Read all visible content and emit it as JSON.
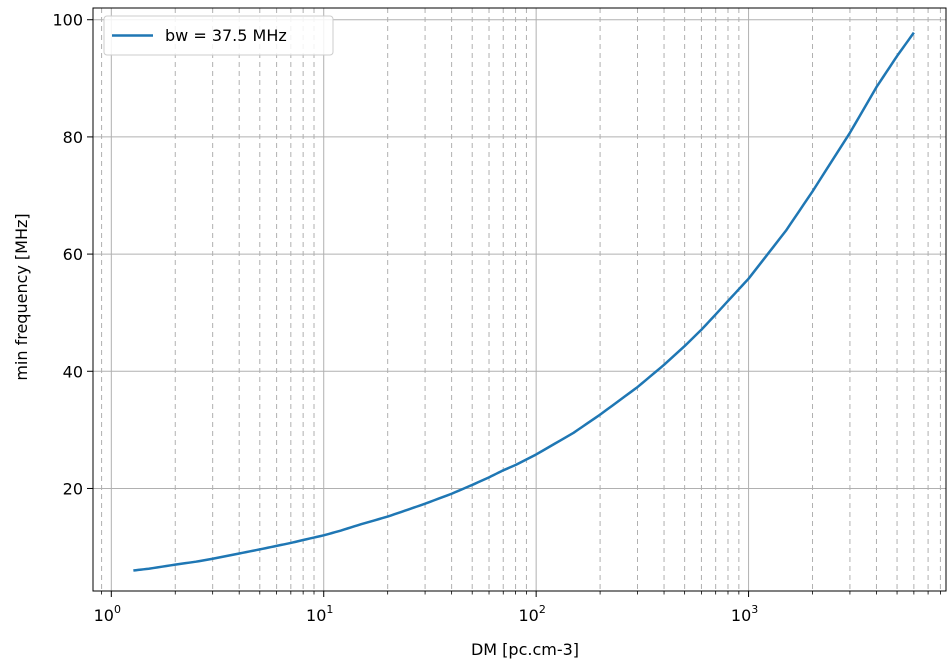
{
  "chart_data": {
    "type": "line",
    "title": "",
    "xlabel": "DM [pc.cm-3]",
    "ylabel": "min frequency [MHz]",
    "xscale": "log",
    "xlim": [
      0.82,
      8500
    ],
    "ylim": [
      2.5,
      102
    ],
    "x_major_ticks": [
      {
        "value": 1,
        "base": "10",
        "exp": "0"
      },
      {
        "value": 10,
        "base": "10",
        "exp": "1"
      },
      {
        "value": 100,
        "base": "10",
        "exp": "2"
      },
      {
        "value": 1000,
        "base": "10",
        "exp": "3"
      }
    ],
    "y_ticks": [
      20,
      40,
      60,
      80,
      100
    ],
    "grid": {
      "major": "solid",
      "minor_x": "dashed"
    },
    "legend_position": "top-left",
    "series": [
      {
        "name": "bw = 37.5 MHz",
        "color": "#1f77b4",
        "x": [
          1.27,
          1.5,
          2,
          2.5,
          3,
          4,
          5,
          6,
          7,
          8,
          10,
          12,
          15,
          20,
          25,
          30,
          40,
          50,
          60,
          70,
          80,
          100,
          150,
          200,
          300,
          400,
          500,
          600,
          700,
          800,
          1000,
          1500,
          2000,
          3000,
          4000,
          5000,
          6000
        ],
        "y": [
          6.0,
          6.3,
          7.0,
          7.5,
          8.0,
          8.9,
          9.6,
          10.2,
          10.7,
          11.2,
          12.0,
          12.8,
          13.9,
          15.2,
          16.4,
          17.4,
          19.1,
          20.6,
          21.9,
          23.1,
          24.0,
          25.8,
          29.5,
          32.6,
          37.3,
          41.1,
          44.3,
          47.1,
          49.7,
          52.0,
          55.8,
          64.0,
          70.7,
          80.7,
          88.5,
          93.8,
          97.8
        ]
      }
    ]
  }
}
